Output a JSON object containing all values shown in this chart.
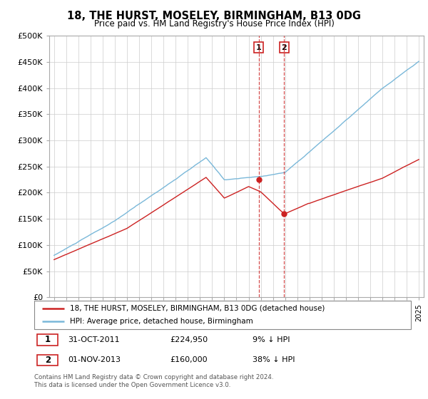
{
  "title": "18, THE HURST, MOSELEY, BIRMINGHAM, B13 0DG",
  "subtitle": "Price paid vs. HM Land Registry's House Price Index (HPI)",
  "hpi_color": "#7ab8d9",
  "price_color": "#cc2222",
  "dashed_line_color": "#cc2222",
  "background_color": "#ffffff",
  "grid_color": "#cccccc",
  "ylim": [
    0,
    500000
  ],
  "yticks": [
    0,
    50000,
    100000,
    150000,
    200000,
    250000,
    300000,
    350000,
    400000,
    450000,
    500000
  ],
  "ytick_labels": [
    "£0",
    "£50K",
    "£100K",
    "£150K",
    "£200K",
    "£250K",
    "£300K",
    "£350K",
    "£400K",
    "£450K",
    "£500K"
  ],
  "legend_label_price": "18, THE HURST, MOSELEY, BIRMINGHAM, B13 0DG (detached house)",
  "legend_label_hpi": "HPI: Average price, detached house, Birmingham",
  "transaction1_date": "31-OCT-2011",
  "transaction1_price": "£224,950",
  "transaction1_pct": "9% ↓ HPI",
  "transaction2_date": "01-NOV-2013",
  "transaction2_price": "£160,000",
  "transaction2_pct": "38% ↓ HPI",
  "footer": "Contains HM Land Registry data © Crown copyright and database right 2024.\nThis data is licensed under the Open Government Licence v3.0.",
  "t1_year": 2011.833,
  "t1_price": 224950,
  "t2_year": 2013.917,
  "t2_price": 160000
}
